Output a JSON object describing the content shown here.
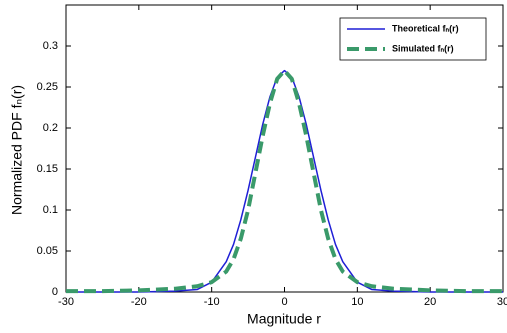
{
  "chart_data": {
    "type": "line",
    "xlabel": "Magnitude r",
    "ylabel": "Normalized PDF fₙ(r)",
    "x": [
      -30,
      -25,
      -20,
      -15,
      -12,
      -10,
      -8,
      -7,
      -6,
      -5,
      -4,
      -3,
      -2,
      -1,
      0,
      1,
      2,
      3,
      4,
      5,
      6,
      7,
      8,
      10,
      12,
      15,
      20,
      25,
      30
    ],
    "series": [
      {
        "name": "Theoretical fₙ(r)",
        "color": "#1f1fd6",
        "dash": false,
        "values": [
          0,
          0,
          0,
          0.001,
          0.003,
          0.012,
          0.037,
          0.058,
          0.088,
          0.124,
          0.164,
          0.204,
          0.238,
          0.262,
          0.27,
          0.262,
          0.238,
          0.204,
          0.164,
          0.124,
          0.088,
          0.058,
          0.037,
          0.012,
          0.003,
          0.001,
          0,
          0,
          0
        ]
      },
      {
        "name": "Simulated fₙ(r)",
        "color": "#3a9a6a",
        "dash": true,
        "values": [
          0.001,
          0.001,
          0.002,
          0.004,
          0.007,
          0.012,
          0.025,
          0.04,
          0.065,
          0.1,
          0.145,
          0.19,
          0.23,
          0.26,
          0.27,
          0.26,
          0.23,
          0.19,
          0.145,
          0.1,
          0.065,
          0.04,
          0.025,
          0.012,
          0.007,
          0.004,
          0.002,
          0.001,
          0.001
        ]
      }
    ],
    "xlim": [
      -30,
      30
    ],
    "xticks": [
      -30,
      -20,
      -10,
      0,
      10,
      20,
      30
    ],
    "ylim": [
      0,
      0.35
    ],
    "yticks": [
      0,
      0.05,
      0.1,
      0.15,
      0.2,
      0.25,
      0.3
    ],
    "legend": "upper right"
  }
}
